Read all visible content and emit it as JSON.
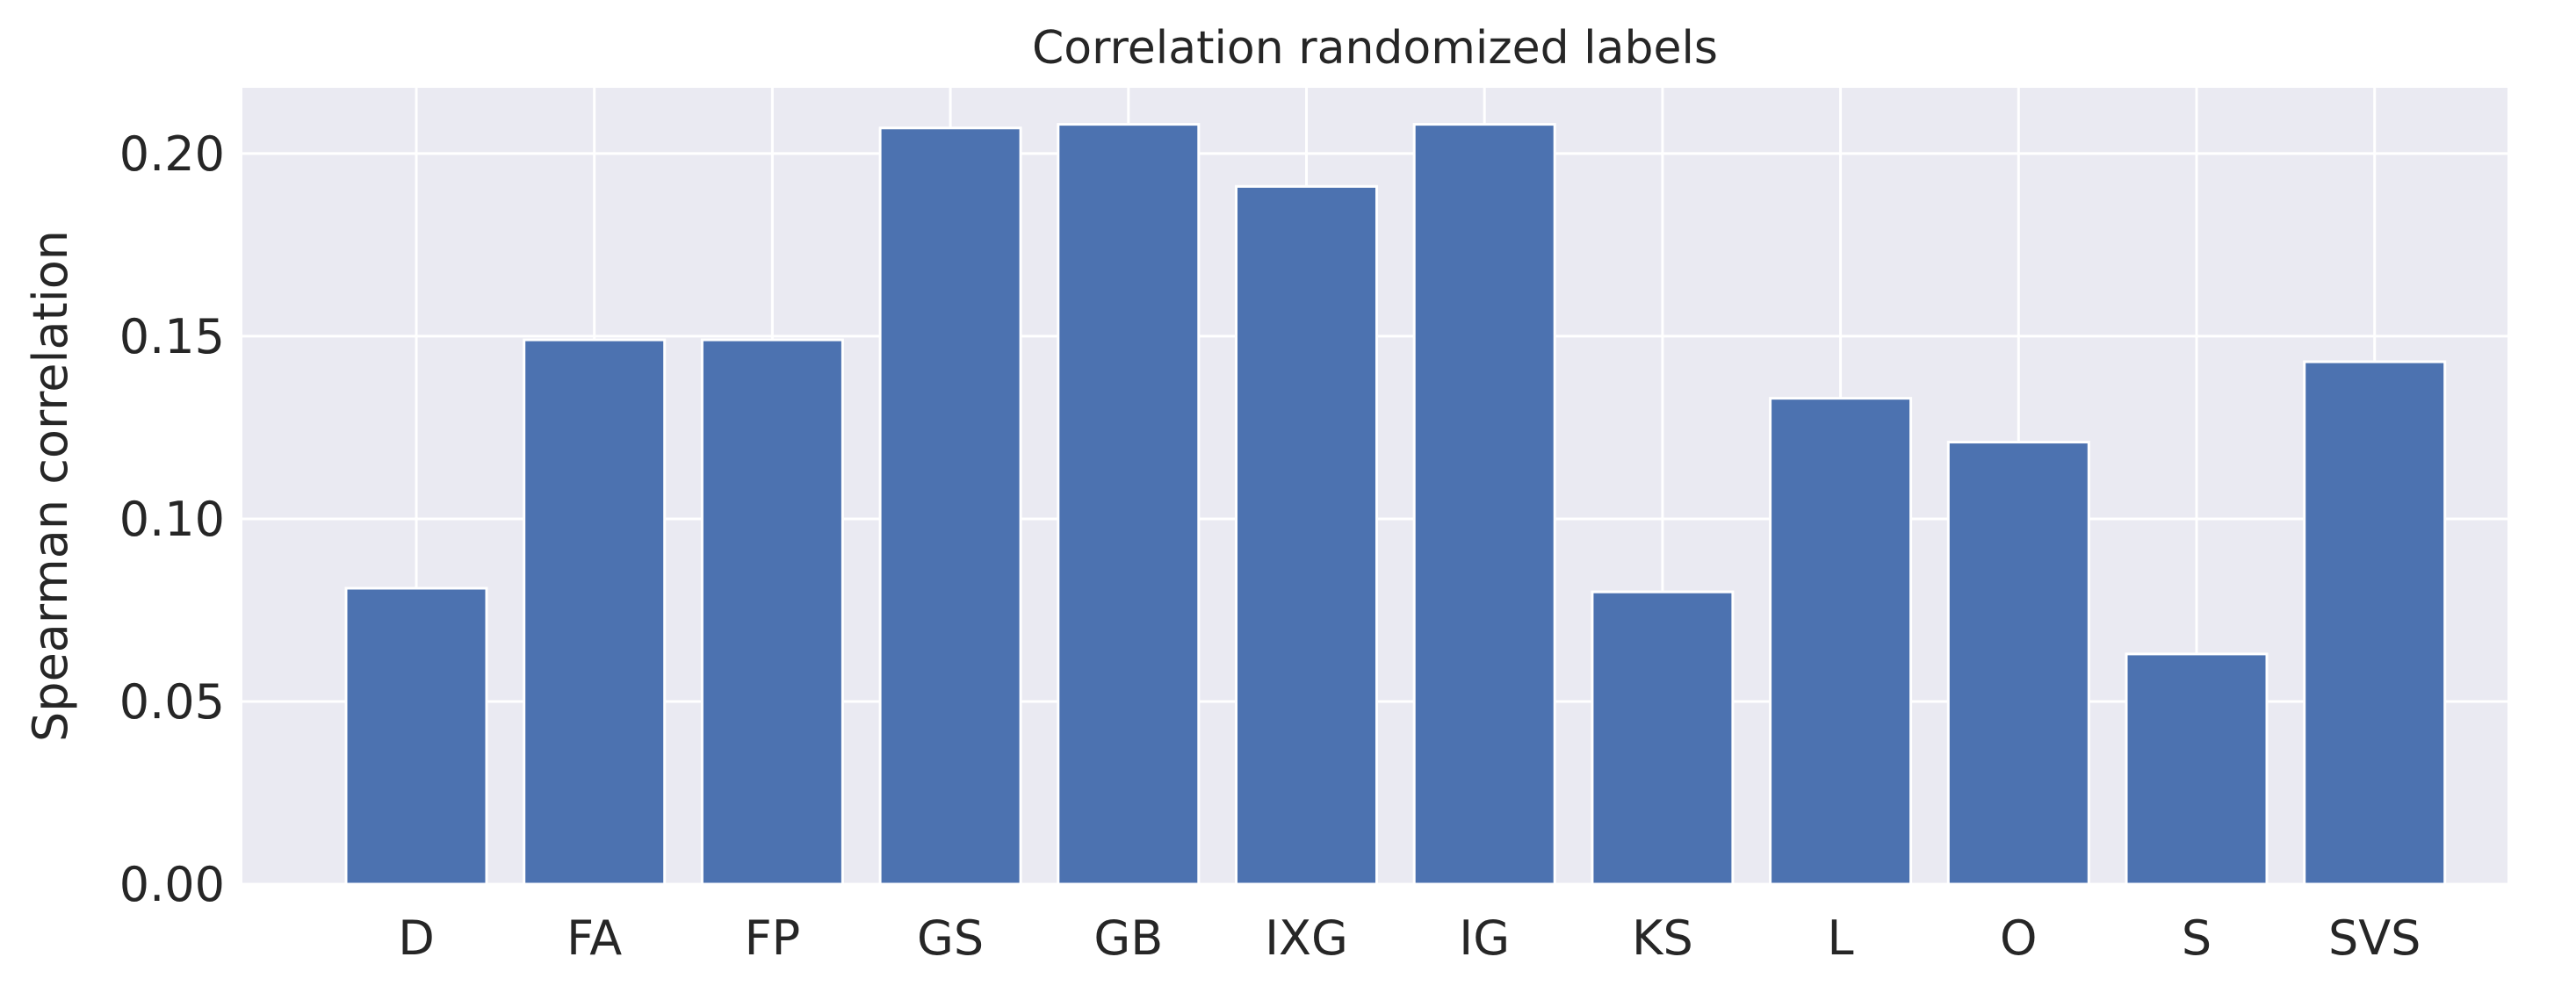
{
  "chart_data": {
    "type": "bar",
    "title": "Correlation randomized labels",
    "xlabel": "",
    "ylabel": "Spearman correlation",
    "categories": [
      "D",
      "FA",
      "FP",
      "GS",
      "GB",
      "IXG",
      "IG",
      "KS",
      "L",
      "O",
      "S",
      "SVS"
    ],
    "values": [
      0.081,
      0.149,
      0.149,
      0.207,
      0.208,
      0.191,
      0.208,
      0.08,
      0.133,
      0.121,
      0.063,
      0.143
    ],
    "ylim": [
      0,
      0.218
    ],
    "yticks": [
      0.0,
      0.05,
      0.1,
      0.15,
      0.2
    ],
    "ytick_labels": [
      "0.00",
      "0.05",
      "0.10",
      "0.15",
      "0.20"
    ],
    "grid": true,
    "legend": "none",
    "colors": {
      "bar": "#4c72b0",
      "plot_background": "#eaeaf2",
      "grid": "#ffffff"
    }
  }
}
